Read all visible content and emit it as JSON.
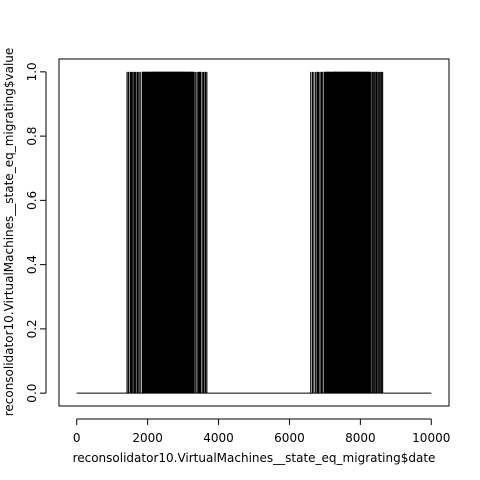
{
  "chart_data": {
    "type": "line",
    "style": "vertical-lines",
    "title": "",
    "xlabel": "reconsolidator10.VirtualMachines__state_eq_migrating$date",
    "ylabel": "reconsolidator10.VirtualMachines__state_eq_migrating$value",
    "xlim": [
      -500,
      10500
    ],
    "ylim": [
      -0.04,
      1.04
    ],
    "x_ticks": [
      0,
      2000,
      4000,
      6000,
      8000,
      10000
    ],
    "y_ticks": [
      0.0,
      0.2,
      0.4,
      0.6,
      0.8,
      1.0
    ],
    "x_tick_labels": [
      "0",
      "2000",
      "4000",
      "6000",
      "8000",
      "10000"
    ],
    "y_tick_labels": [
      "0.0",
      "0.2",
      "0.4",
      "0.6",
      "0.8",
      "1.0"
    ],
    "baseline": {
      "x": [
        0,
        10000
      ],
      "value": 0
    },
    "series": [
      {
        "name": "value",
        "segments": [
          {
            "x_start": 1420,
            "x_end": 3700,
            "value": 1
          },
          {
            "x_start": 6600,
            "x_end": 8650,
            "value": 1
          }
        ]
      }
    ],
    "color": "#000000"
  }
}
